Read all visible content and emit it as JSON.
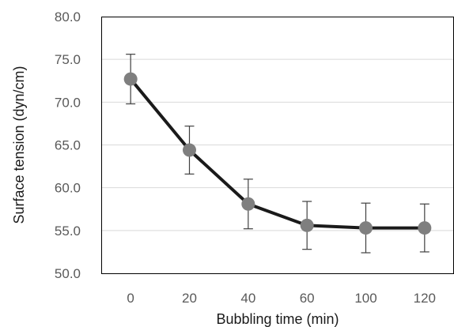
{
  "chart_data": {
    "type": "line",
    "xlabel": "Bubbling time (min)",
    "ylabel": "Surface tension (dyn/cm)",
    "categories": [
      "0",
      "20",
      "40",
      "60",
      "100",
      "120"
    ],
    "series": [
      {
        "values": [
          72.7,
          64.4,
          58.1,
          55.6,
          55.3,
          55.3
        ],
        "error": [
          2.9,
          2.8,
          2.9,
          2.8,
          2.9,
          2.8
        ]
      }
    ],
    "ylim": [
      50,
      80
    ],
    "yticks": [
      "50.0",
      "55.0",
      "60.0",
      "65.0",
      "70.0",
      "75.0",
      "80.0"
    ],
    "grid": true,
    "colors": {
      "line": "#1a1a1a",
      "marker": "#7f7f7f",
      "error_bar": "#404040",
      "grid": "#d9d9d9",
      "frame": "#000000"
    }
  }
}
